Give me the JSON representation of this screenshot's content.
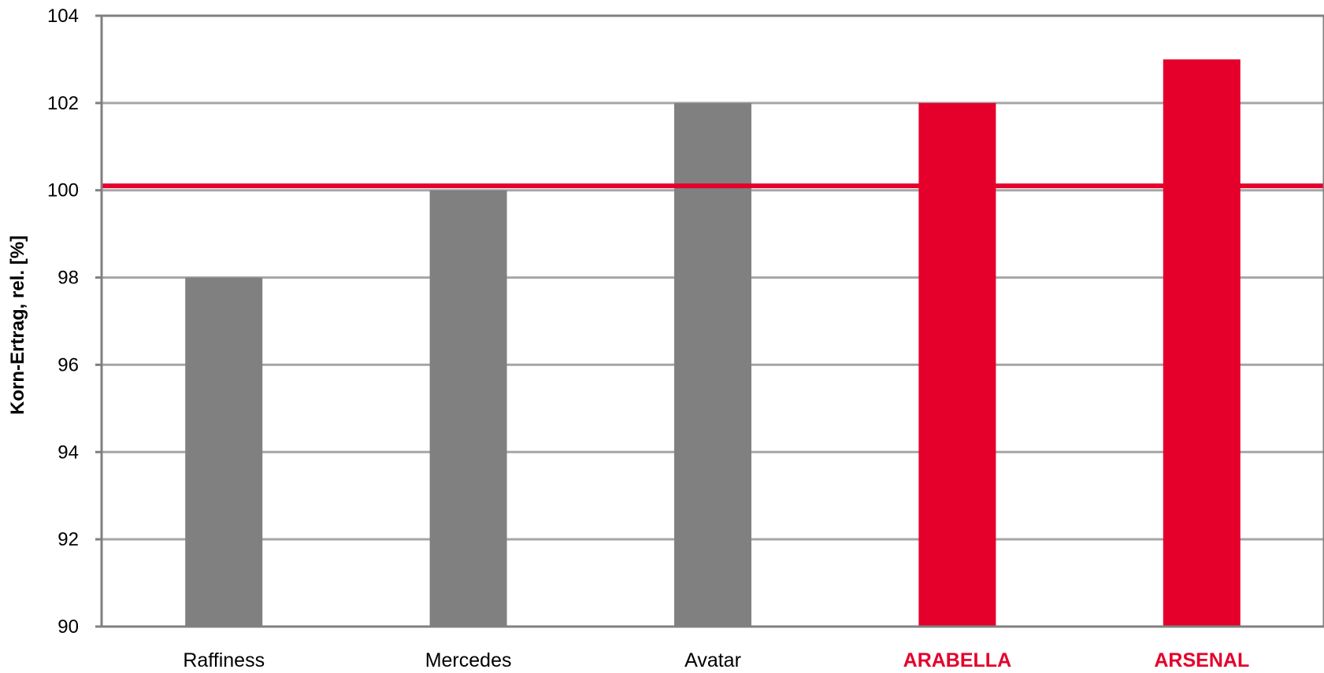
{
  "chart_data": {
    "type": "bar",
    "categories": [
      "Raffiness",
      "Mercedes",
      "Avatar",
      "ARABELLA",
      "ARSENAL"
    ],
    "values": [
      98,
      100,
      102,
      102,
      103
    ],
    "highlighted": [
      false,
      false,
      false,
      true,
      true
    ],
    "ylabel": "Korn-Ertrag, rel. [%]",
    "ylim": [
      90,
      104
    ],
    "yticks": [
      90,
      92,
      94,
      96,
      98,
      100,
      102,
      104
    ],
    "reference_line": 100.1,
    "grid": true,
    "colors": {
      "bar": "#808080",
      "highlight": "#E4002B",
      "reference": "#E4002B",
      "grid": "#A6A6A6",
      "axis": "#808080"
    }
  }
}
